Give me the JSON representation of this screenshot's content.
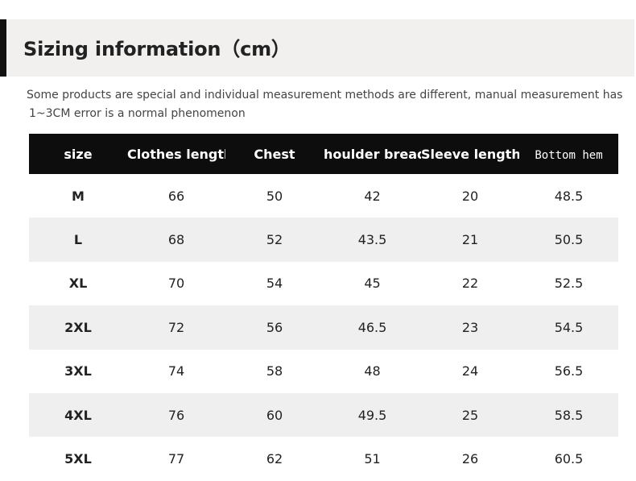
{
  "title": "Sizing information（cm）",
  "note_lines": [
    "Some products are special and individual measurement methods are different, manual measurement has",
    "1~3CM error is a normal phenomenon"
  ],
  "table": {
    "headers": [
      "size",
      "Clothes length",
      "Chest",
      "houlder breadt",
      "Sleeve length",
      "Bottom hem"
    ],
    "rows": [
      [
        "M",
        "66",
        "50",
        "42",
        "20",
        "48.5"
      ],
      [
        "L",
        "68",
        "52",
        "43.5",
        "21",
        "50.5"
      ],
      [
        "XL",
        "70",
        "54",
        "45",
        "22",
        "52.5"
      ],
      [
        "2XL",
        "72",
        "56",
        "46.5",
        "23",
        "54.5"
      ],
      [
        "3XL",
        "74",
        "58",
        "48",
        "24",
        "56.5"
      ],
      [
        "4XL",
        "76",
        "60",
        "49.5",
        "25",
        "58.5"
      ],
      [
        "5XL",
        "77",
        "62",
        "51",
        "26",
        "60.5"
      ]
    ]
  }
}
